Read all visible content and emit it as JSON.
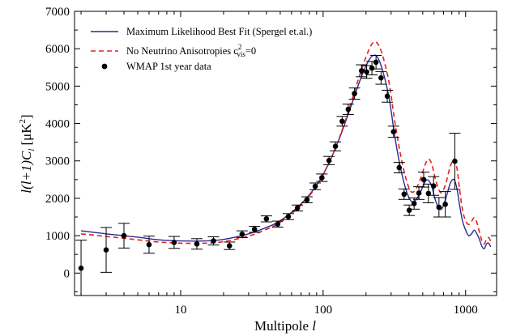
{
  "chart_data": {
    "type": "line",
    "xlabel": "Multipole",
    "xlabel_symbol": "l",
    "ylabel_prefix": "l(l+1)C",
    "ylabel_sub": "l",
    "ylabel_unit": "[μK",
    "ylabel_unit_sup": "2",
    "ylabel_unit_end": "]",
    "x_scale": "log",
    "xlim": [
      1.8,
      1650
    ],
    "ylim": [
      -600,
      7000
    ],
    "x_ticks": [
      10,
      100,
      1000
    ],
    "x_tick_labels": [
      "10",
      "100",
      "1000"
    ],
    "y_ticks": [
      0,
      1000,
      2000,
      3000,
      4000,
      5000,
      6000,
      7000
    ],
    "y_tick_labels": [
      "0",
      "1000",
      "2000",
      "3000",
      "4000",
      "5000",
      "6000",
      "7000"
    ],
    "grid": false,
    "legend_position": "top-left",
    "series": [
      {
        "name": "Maximum Likelihood Best Fit (Spergel et.al.)",
        "style": "solid",
        "color": "#2b2a8f",
        "x": [
          2,
          3,
          4,
          5,
          7,
          10,
          15,
          20,
          30,
          40,
          50,
          70,
          90,
          110,
          130,
          150,
          170,
          190,
          210,
          225,
          240,
          260,
          290,
          320,
          350,
          380,
          410,
          440,
          480,
          520,
          550,
          580,
          620,
          670,
          720,
          780,
          830,
          870,
          900,
          950,
          1000,
          1050,
          1100,
          1150,
          1200,
          1250,
          1300,
          1350,
          1400,
          1450,
          1500
        ],
        "y": [
          1130,
          1050,
          1000,
          960,
          890,
          860,
          860,
          900,
          1050,
          1220,
          1400,
          1850,
          2350,
          2950,
          3600,
          4250,
          4850,
          5350,
          5700,
          5820,
          5780,
          5450,
          4700,
          3600,
          2800,
          2250,
          1950,
          1920,
          2150,
          2450,
          2480,
          2300,
          1900,
          1700,
          1950,
          2400,
          2500,
          2250,
          1900,
          1400,
          1150,
          1000,
          1050,
          1150,
          1050,
          900,
          720,
          650,
          780,
          800,
          700
        ]
      },
      {
        "name": "No Neutrino Anisotropies c",
        "name_sup": "2",
        "name_sub": "vis",
        "name_end": "=0",
        "style": "dashed",
        "color": "#e32222",
        "x": [
          2,
          3,
          4,
          5,
          7,
          10,
          15,
          20,
          30,
          40,
          50,
          70,
          90,
          110,
          130,
          150,
          170,
          190,
          210,
          225,
          240,
          260,
          290,
          320,
          350,
          380,
          410,
          440,
          480,
          520,
          550,
          580,
          620,
          670,
          720,
          780,
          830,
          870,
          900,
          950,
          1000,
          1050,
          1100,
          1150,
          1200,
          1250,
          1300,
          1350,
          1400,
          1450,
          1500
        ],
        "y": [
          1050,
          980,
          930,
          890,
          830,
          800,
          800,
          840,
          990,
          1170,
          1360,
          1820,
          2330,
          2950,
          3620,
          4320,
          4980,
          5550,
          5980,
          6170,
          6150,
          5850,
          5100,
          4000,
          3150,
          2550,
          2200,
          2200,
          2500,
          2900,
          3050,
          2900,
          2450,
          2150,
          2350,
          2850,
          3050,
          2800,
          2350,
          1700,
          1400,
          1300,
          1380,
          1480,
          1350,
          1100,
          870,
          780,
          900,
          950,
          850
        ]
      },
      {
        "name": "WMAP 1st year data",
        "style": "points-with-errorbars",
        "color": "#000000",
        "points": [
          {
            "x": 2,
            "y": 130,
            "err": 750
          },
          {
            "x": 3,
            "y": 620,
            "err": 600
          },
          {
            "x": 4,
            "y": 1000,
            "err": 330
          },
          {
            "x": 6,
            "y": 760,
            "err": 230
          },
          {
            "x": 9,
            "y": 820,
            "err": 160
          },
          {
            "x": 13,
            "y": 780,
            "err": 140
          },
          {
            "x": 17,
            "y": 860,
            "err": 110
          },
          {
            "x": 22,
            "y": 730,
            "err": 100
          },
          {
            "x": 27,
            "y": 1040,
            "err": 90
          },
          {
            "x": 33,
            "y": 1170,
            "err": 80
          },
          {
            "x": 40,
            "y": 1450,
            "err": 80
          },
          {
            "x": 48,
            "y": 1310,
            "err": 80
          },
          {
            "x": 57,
            "y": 1510,
            "err": 80
          },
          {
            "x": 66,
            "y": 1740,
            "err": 80
          },
          {
            "x": 77,
            "y": 1960,
            "err": 80
          },
          {
            "x": 88,
            "y": 2320,
            "err": 90
          },
          {
            "x": 98,
            "y": 2550,
            "err": 100
          },
          {
            "x": 110,
            "y": 3010,
            "err": 110
          },
          {
            "x": 122,
            "y": 3390,
            "err": 120
          },
          {
            "x": 136,
            "y": 4060,
            "err": 130
          },
          {
            "x": 150,
            "y": 4380,
            "err": 140
          },
          {
            "x": 166,
            "y": 4800,
            "err": 150
          },
          {
            "x": 186,
            "y": 5410,
            "err": 160
          },
          {
            "x": 202,
            "y": 5380,
            "err": 170
          },
          {
            "x": 220,
            "y": 5480,
            "err": 180
          },
          {
            "x": 235,
            "y": 5640,
            "err": 180
          },
          {
            "x": 255,
            "y": 5220,
            "err": 170
          },
          {
            "x": 282,
            "y": 4730,
            "err": 160
          },
          {
            "x": 312,
            "y": 3780,
            "err": 150
          },
          {
            "x": 342,
            "y": 2820,
            "err": 140
          },
          {
            "x": 370,
            "y": 2110,
            "err": 140
          },
          {
            "x": 402,
            "y": 1680,
            "err": 140
          },
          {
            "x": 435,
            "y": 1860,
            "err": 150
          },
          {
            "x": 470,
            "y": 2140,
            "err": 170
          },
          {
            "x": 508,
            "y": 2500,
            "err": 200
          },
          {
            "x": 548,
            "y": 2130,
            "err": 250
          },
          {
            "x": 596,
            "y": 2330,
            "err": 250
          },
          {
            "x": 650,
            "y": 1760,
            "err": 260
          },
          {
            "x": 720,
            "y": 1840,
            "err": 340
          },
          {
            "x": 840,
            "y": 2990,
            "err": 750
          }
        ]
      }
    ]
  }
}
